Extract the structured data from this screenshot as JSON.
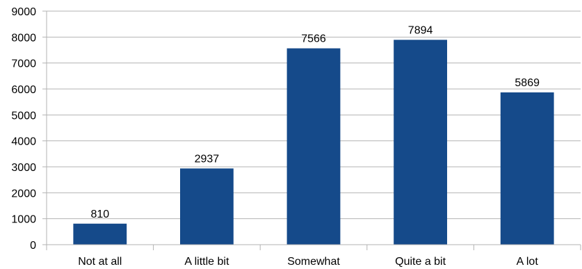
{
  "chart_data": {
    "type": "bar",
    "categories": [
      "Not at all",
      "A little bit",
      "Somewhat",
      "Quite a bit",
      "A lot"
    ],
    "values": [
      810,
      2937,
      7566,
      7894,
      5869
    ],
    "data_labels": [
      "810",
      "2937",
      "7566",
      "7894",
      "5869"
    ],
    "title": "",
    "xlabel": "",
    "ylabel": "",
    "ylim": [
      0,
      9000
    ],
    "yticks": [
      0,
      1000,
      2000,
      3000,
      4000,
      5000,
      6000,
      7000,
      8000,
      9000
    ],
    "grid": true,
    "legend": "none",
    "bar_color": "#154a8a"
  }
}
